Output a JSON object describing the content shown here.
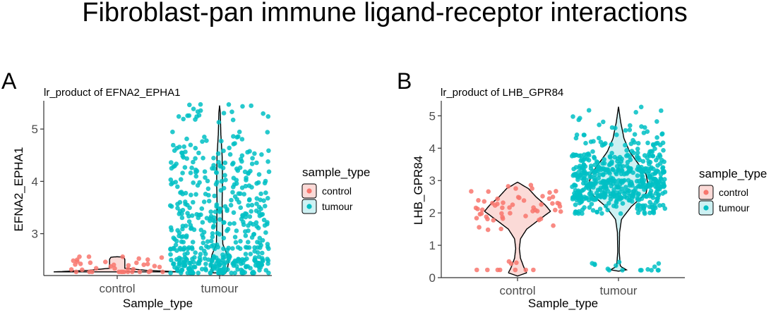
{
  "title": "Fibroblast-pan immune ligand-receptor interactions",
  "colors": {
    "control": "#F8766D",
    "tumour": "#00BFC4",
    "control_fill": "#FBDAD7",
    "tumour_fill": "#CDF1F3",
    "axis": "#333333",
    "tick_text": "#4d4d4d"
  },
  "chart_data": [
    {
      "type": "scatter",
      "panel": "A",
      "title": "lr_product of EFNA2_EPHA1",
      "xlabel": "Sample_type",
      "ylabel": "EFNA2_EPHA1",
      "categories": [
        "control",
        "tumour"
      ],
      "ylim": [
        2.2,
        5.5
      ],
      "yticks": [
        3,
        4,
        5
      ],
      "grid": false,
      "legend": {
        "title": "sample_type",
        "position": "right",
        "entries": [
          "control",
          "tumour"
        ]
      },
      "series": [
        {
          "name": "control",
          "points": {
            "count": 40,
            "min": 2.27,
            "max": 2.56,
            "dist": [
              [
                2.27,
                14
              ],
              [
                2.32,
                10
              ],
              [
                2.38,
                6
              ],
              [
                2.45,
                5
              ],
              [
                2.53,
                5
              ]
            ]
          },
          "violin": {
            "profile": [
              [
                2.27,
                1.0
              ],
              [
                2.3,
                0.45
              ],
              [
                2.34,
                0.12
              ],
              [
                2.4,
                0.12
              ],
              [
                2.46,
                0.12
              ],
              [
                2.51,
                0.12
              ],
              [
                2.55,
                0.1
              ],
              [
                2.56,
                0.0
              ]
            ]
          }
        },
        {
          "name": "tumour",
          "points": {
            "count": 520,
            "min": 2.25,
            "max": 5.47,
            "dist": [
              [
                2.35,
                110
              ],
              [
                2.55,
                80
              ],
              [
                2.9,
                60
              ],
              [
                3.3,
                55
              ],
              [
                3.6,
                55
              ],
              [
                4.0,
                45
              ],
              [
                4.4,
                45
              ],
              [
                4.8,
                20
              ],
              [
                5.3,
                20
              ]
            ]
          },
          "violin": {
            "profile": [
              [
                2.25,
                0.1
              ],
              [
                2.3,
                0.12
              ],
              [
                2.45,
                0.14
              ],
              [
                2.6,
                0.12
              ],
              [
                2.8,
                0.05
              ],
              [
                3.2,
                0.045
              ],
              [
                3.6,
                0.04
              ],
              [
                3.9,
                0.045
              ],
              [
                4.2,
                0.045
              ],
              [
                4.5,
                0.04
              ],
              [
                4.9,
                0.02
              ],
              [
                5.3,
                0.012
              ],
              [
                5.45,
                0.0
              ]
            ]
          }
        }
      ]
    },
    {
      "type": "scatter",
      "panel": "B",
      "title": "lr_product of LHB_GPR84",
      "xlabel": "Sample_type",
      "ylabel": "LHB_GPR84",
      "categories": [
        "control",
        "tumour"
      ],
      "ylim": [
        0,
        5.4
      ],
      "yticks": [
        0,
        1,
        2,
        3,
        4,
        5
      ],
      "grid": false,
      "legend": {
        "title": "sample_type",
        "position": "right",
        "entries": [
          "control",
          "tumour"
        ]
      },
      "series": [
        {
          "name": "control",
          "points": {
            "count": 65,
            "min": 0.24,
            "max": 2.95,
            "dist": [
              [
                0.25,
                10
              ],
              [
                1.8,
                8
              ],
              [
                2.0,
                15
              ],
              [
                2.2,
                15
              ],
              [
                2.45,
                12
              ],
              [
                2.7,
                5
              ]
            ]
          },
          "violin": {
            "profile": [
              [
                0.05,
                0.0
              ],
              [
                0.15,
                0.25
              ],
              [
                0.3,
                0.18
              ],
              [
                0.6,
                0.08
              ],
              [
                0.9,
                0.05
              ],
              [
                1.2,
                0.08
              ],
              [
                1.5,
                0.25
              ],
              [
                1.8,
                0.6
              ],
              [
                2.05,
                0.9
              ],
              [
                2.25,
                0.75
              ],
              [
                2.5,
                0.5
              ],
              [
                2.75,
                0.3
              ],
              [
                2.95,
                0.0
              ]
            ]
          }
        },
        {
          "name": "tumour",
          "points": {
            "count": 560,
            "min": 0.23,
            "max": 5.29,
            "dist": [
              [
                0.25,
                16
              ],
              [
                2.3,
                90
              ],
              [
                2.7,
                140
              ],
              [
                3.1,
                140
              ],
              [
                3.5,
                90
              ],
              [
                3.9,
                50
              ],
              [
                4.4,
                25
              ],
              [
                5.1,
                9
              ]
            ]
          },
          "violin": {
            "profile": [
              [
                0.2,
                0.0
              ],
              [
                0.22,
                0.25
              ],
              [
                0.35,
                0.05
              ],
              [
                0.8,
                0.02
              ],
              [
                1.4,
                0.03
              ],
              [
                1.8,
                0.08
              ],
              [
                2.2,
                0.35
              ],
              [
                2.6,
                0.75
              ],
              [
                2.9,
                0.8
              ],
              [
                3.2,
                0.75
              ],
              [
                3.5,
                0.55
              ],
              [
                3.9,
                0.3
              ],
              [
                4.3,
                0.15
              ],
              [
                4.8,
                0.06
              ],
              [
                5.28,
                0.0
              ]
            ]
          }
        }
      ]
    }
  ]
}
